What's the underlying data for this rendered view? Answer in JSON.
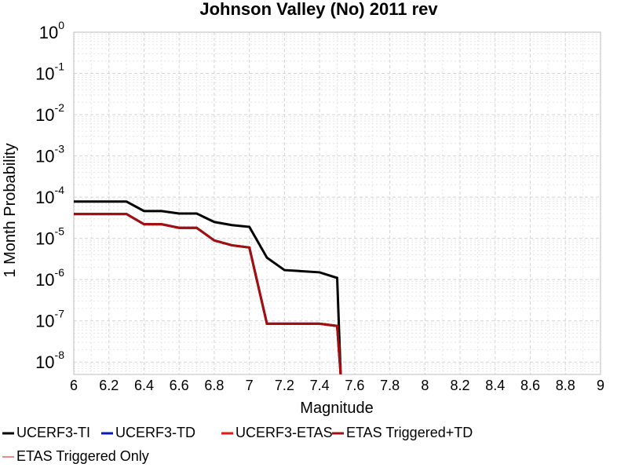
{
  "chart_data": {
    "type": "line",
    "title": "Johnson Valley (No) 2011 rev",
    "xlabel": "Magnitude",
    "ylabel": "1 Month Probability",
    "xlim": [
      6,
      9
    ],
    "ylim_log10": [
      -8.3,
      0
    ],
    "y_scale": "log",
    "grid": true,
    "legend_placement": "bottom",
    "x_ticks": [
      "6",
      "6.2",
      "6.4",
      "6.6",
      "6.8",
      "7",
      "7.2",
      "7.4",
      "7.6",
      "7.8",
      "8",
      "8.2",
      "8.4",
      "8.6",
      "8.8",
      "9"
    ],
    "y_ticks": [
      {
        "base": "10",
        "exp": "0",
        "value": 1
      },
      {
        "base": "10",
        "exp": "-1",
        "value": 0.1
      },
      {
        "base": "10",
        "exp": "-2",
        "value": 0.01
      },
      {
        "base": "10",
        "exp": "-3",
        "value": 0.001
      },
      {
        "base": "10",
        "exp": "-4",
        "value": 0.0001
      },
      {
        "base": "10",
        "exp": "-5",
        "value": 1e-05
      },
      {
        "base": "10",
        "exp": "-6",
        "value": 1e-06
      },
      {
        "base": "10",
        "exp": "-7",
        "value": 1e-07
      },
      {
        "base": "10",
        "exp": "-8",
        "value": 1e-08
      }
    ],
    "series": [
      {
        "name": "UCERF3-TI",
        "color": "#000000",
        "x": [
          6.0,
          6.1,
          6.2,
          6.3,
          6.4,
          6.5,
          6.6,
          6.7,
          6.8,
          6.9,
          7.0,
          7.1,
          7.2,
          7.3,
          7.4,
          7.5,
          7.52
        ],
        "y": [
          7.8e-05,
          7.8e-05,
          7.8e-05,
          7.8e-05,
          4.6e-05,
          4.6e-05,
          4e-05,
          4e-05,
          2.5e-05,
          2.1e-05,
          1.9e-05,
          3.4e-06,
          1.7e-06,
          1.6e-06,
          1.5e-06,
          1.1e-06,
          5e-09
        ]
      },
      {
        "name": "UCERF3-TD",
        "color": "#0a1ab8",
        "x": [
          6.0,
          6.1,
          6.2,
          6.3,
          6.4,
          6.5,
          6.6,
          6.7,
          6.8,
          6.9,
          7.0,
          7.1,
          7.2,
          7.3,
          7.4,
          7.5,
          7.52
        ],
        "y": [
          3.9e-05,
          3.9e-05,
          3.9e-05,
          3.9e-05,
          2.2e-05,
          2.2e-05,
          1.8e-05,
          1.8e-05,
          8.9e-06,
          6.8e-06,
          6e-06,
          8.5e-08,
          8.5e-08,
          8.5e-08,
          8.5e-08,
          7.5e-08,
          5e-09
        ]
      },
      {
        "name": "UCERF3-ETAS",
        "color": "#e21818",
        "x": [
          6.0,
          6.1,
          6.2,
          6.3,
          6.4,
          6.5,
          6.6,
          6.7,
          6.8,
          6.9,
          7.0,
          7.1,
          7.2,
          7.3,
          7.4,
          7.5,
          7.52
        ],
        "y": [
          3.9e-05,
          3.9e-05,
          3.9e-05,
          3.9e-05,
          2.2e-05,
          2.2e-05,
          1.8e-05,
          1.8e-05,
          8.9e-06,
          6.8e-06,
          6e-06,
          8.5e-08,
          8.5e-08,
          8.5e-08,
          8.5e-08,
          7.5e-08,
          5e-09
        ]
      },
      {
        "name": "ETAS Triggered+TD",
        "color": "#a01010",
        "x": [
          6.0,
          6.1,
          6.2,
          6.3,
          6.4,
          6.5,
          6.6,
          6.7,
          6.8,
          6.9,
          7.0,
          7.1,
          7.2,
          7.3,
          7.4,
          7.5,
          7.52
        ],
        "y": [
          3.9e-05,
          3.9e-05,
          3.9e-05,
          3.9e-05,
          2.2e-05,
          2.2e-05,
          1.8e-05,
          1.8e-05,
          8.9e-06,
          6.8e-06,
          6e-06,
          8.5e-08,
          8.5e-08,
          8.5e-08,
          8.5e-08,
          7.5e-08,
          5e-09
        ]
      },
      {
        "name": "ETAS Triggered Only",
        "color": "#f08a8a",
        "x": [],
        "y": []
      }
    ]
  }
}
